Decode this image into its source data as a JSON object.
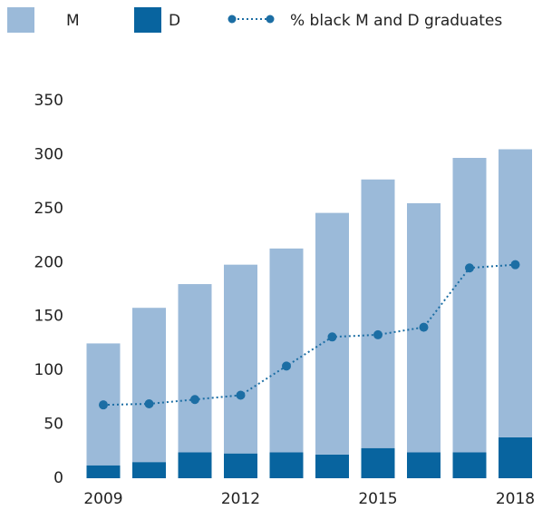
{
  "chart_data": {
    "type": "bar",
    "stacked": true,
    "categories": [
      "2009",
      null,
      null,
      "2012",
      null,
      null,
      "2015",
      null,
      null,
      "2018"
    ],
    "series": [
      {
        "name": "M",
        "color": "#9bbad9",
        "values": [
          113,
          143,
          156,
          175,
          189,
          224,
          249,
          231,
          273,
          267
        ]
      },
      {
        "name": "D",
        "color": "#08649f",
        "values": [
          12,
          15,
          24,
          23,
          24,
          22,
          28,
          24,
          24,
          38
        ]
      },
      {
        "name": "% black M and D graduates",
        "type": "line",
        "color": "#1c6ea4",
        "values": [
          68,
          69,
          73,
          77,
          104,
          131,
          133,
          140,
          195,
          198
        ]
      }
    ],
    "ylim": [
      0,
      350
    ],
    "yticks": [
      0,
      50,
      100,
      150,
      200,
      250,
      300,
      350
    ],
    "grid": false,
    "legend": "top"
  }
}
